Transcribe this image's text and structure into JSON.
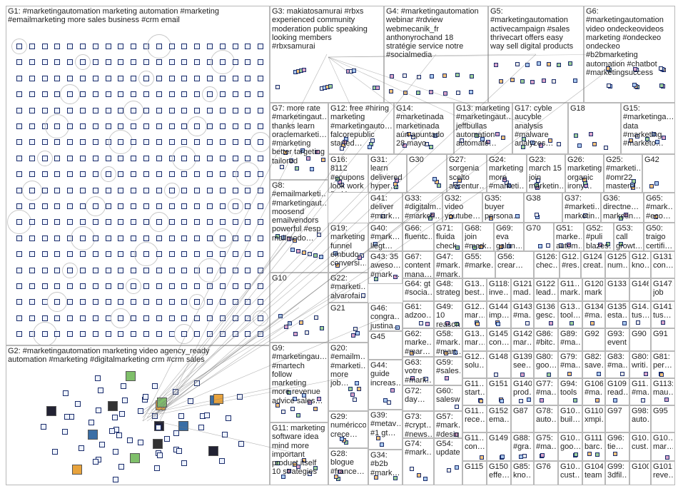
{
  "graph": {
    "colors": {
      "cell_border": "#b9b9b9",
      "node_border": "#1a2c6a",
      "edge": "#777777",
      "text": "#1e1e1e"
    },
    "groups": [
      {
        "id": "G1",
        "label": "G1: #marketingautomation marketing automation #marketing\n#emailmarketing more sales business #crm email"
      },
      {
        "id": "G2",
        "label": "G2: #marketingautomation marketing video agency_ready\nautomation #marketing #digitalmarketing crm #crm sales"
      },
      {
        "id": "G3",
        "label": "G3: makiatosamurai #rbxs\nexperienced community\nmoderation public speaking\nlooking members\n#rbxsamurai"
      },
      {
        "id": "G4",
        "label": "G4: #marketingautomation\nwebinar #rdview\nwebmecanik_fr\nanthonyrochand 18\nstratégie service notre\n#socialmedia"
      },
      {
        "id": "G5",
        "label": "G5:\n#marketingautomation\nactivecampaign #sales\nthrivecart offers easy\nway sell digital products"
      },
      {
        "id": "G6",
        "label": "G6:\n#marketingautomation\nvideo ondeckeovideos\nmarketing #ondeckeo\nondeckeo\n#b2bmarketing\nautomation #chatbot\n#marketingsuccess"
      },
      {
        "id": "G7",
        "label": "G7: more rate\n#marketingaut…\nthanks learn\noraclemarketi…\n#marketing\nbetter targeting\ntailored"
      },
      {
        "id": "G12",
        "label": "G12: free #hiring\nmarketing\n#marketingauto…\nfalcorepublic\nstarted…"
      },
      {
        "id": "G14",
        "label": "G14:\n#marketinada\nmarketinada\naún apuntado\n28 mayo"
      },
      {
        "id": "G13",
        "label": "G13: marketing\n#marketingaut…\njeffbullas\nautomation\nautomate…"
      },
      {
        "id": "G17",
        "label": "G17: cyble\naucyble\nanalysis\n#malware\nanalyzes…"
      },
      {
        "id": "G18",
        "label": "G18"
      },
      {
        "id": "G15",
        "label": "G15:\n#marketinga…\ndata\n#marketing\n#marketo…"
      },
      {
        "id": "G16",
        "label": "G16:\n8112\n#coupons\nlook work\nfind less\nminute\nfobi_inc…"
      },
      {
        "id": "G31",
        "label": "G31:\nlearn\ndelivered\nhyper…"
      },
      {
        "id": "G30",
        "label": "G30"
      },
      {
        "id": "G27",
        "label": "G27:\nsorgenia\nscelto\naccentur…"
      },
      {
        "id": "G24",
        "label": "G24:\nmarketing\nmore\n#marketi…"
      },
      {
        "id": "G23",
        "label": "G23:\nmarch 15\njoin\nmarketin…"
      },
      {
        "id": "G26",
        "label": "G26:\nmarketing\norganic\nirony…"
      },
      {
        "id": "G25",
        "label": "G25:\n#marketi…\n#omr22\nmastercl…"
      },
      {
        "id": "G42",
        "label": "G42"
      },
      {
        "id": "G8",
        "label": "G8:\n#emailmarketi…\n#marketingaut…\nmoosend\nemailvendors\npowerful #esp\nmailmodo…"
      },
      {
        "id": "G41",
        "label": "G41:\ndeliver\n#mark…"
      },
      {
        "id": "G33",
        "label": "G33:\n#digitalm…\n#marketi…"
      },
      {
        "id": "G32",
        "label": "G32:\nvideo\nyoutube…"
      },
      {
        "id": "G35",
        "label": "G35:\nbuyer\npersona…"
      },
      {
        "id": "G38",
        "label": "G38"
      },
      {
        "id": "G37",
        "label": "G37:\n#marketi…\nmarketin…"
      },
      {
        "id": "G36",
        "label": "G36:\ndirectne…\nmarketin…"
      },
      {
        "id": "G65",
        "label": "G65:\n#mark…\n#eco…"
      },
      {
        "id": "G19",
        "label": "G19:\nmarketing\nfunnel\nembudo\nconversi…"
      },
      {
        "id": "G40",
        "label": "G40:\n#mark…\nliegt…"
      },
      {
        "id": "G66",
        "label": "G66:\nfluentc…"
      },
      {
        "id": "G71",
        "label": "G71:\nfluida\ncheck…"
      },
      {
        "id": "G68",
        "label": "G68:\njoin\n#mark…"
      },
      {
        "id": "G69",
        "label": "G69:\neva\ngalán…"
      },
      {
        "id": "G70",
        "label": "G70"
      },
      {
        "id": "G51",
        "label": "G51:\nmarke…\nautom…"
      },
      {
        "id": "G52",
        "label": "G52:\n#puli\nblazes…"
      },
      {
        "id": "G53",
        "label": "G53:\ncall\ngrowt…"
      },
      {
        "id": "G50",
        "label": "G50:\ntraigo\ncertifi…"
      },
      {
        "id": "G10",
        "label": "G10"
      },
      {
        "id": "G22",
        "label": "G22:\n#marketi…\nalvarofai…\ncuenta…"
      },
      {
        "id": "G43",
        "label": "G43: 35\naweso…\n#mark…"
      },
      {
        "id": "G67",
        "label": "G67:\ncontent\nmana…"
      },
      {
        "id": "G47",
        "label": "G47:\n#mark…\n#mark…"
      },
      {
        "id": "G64",
        "label": "G64: gt\n#socia…"
      },
      {
        "id": "G48",
        "label": "G48:\nstrateg…"
      },
      {
        "id": "G55",
        "label": "G55:\n#marke…"
      },
      {
        "id": "G56",
        "label": "G56:\ncrear…"
      },
      {
        "id": "G126",
        "label": "G126:\nchec…"
      },
      {
        "id": "G12x",
        "label": "G12…\n#res…"
      },
      {
        "id": "G124",
        "label": "G124:\ncreat…"
      },
      {
        "id": "G125",
        "label": "G125:\nnum…"
      },
      {
        "id": "G12y",
        "label": "G12…\nkno…"
      },
      {
        "id": "G131",
        "label": "G131:\ncon…"
      },
      {
        "id": "G13a",
        "label": "G13…\nbest…"
      },
      {
        "id": "G118",
        "label": "G118:\ninve…"
      },
      {
        "id": "G121",
        "label": "G121:\nmad…"
      },
      {
        "id": "G122",
        "label": "G122:\nlead…"
      },
      {
        "id": "G11a",
        "label": "G11…\nmark…"
      },
      {
        "id": "G120",
        "label": "G120:\nmark…"
      },
      {
        "id": "G133",
        "label": "G133"
      },
      {
        "id": "G146",
        "label": "G146"
      },
      {
        "id": "G147",
        "label": "G147:\njob"
      },
      {
        "id": "G46",
        "label": "G46:\ncongra…\njustina…"
      },
      {
        "id": "G21",
        "label": "G21"
      },
      {
        "id": "G61",
        "label": "G61:\nadzoo…"
      },
      {
        "id": "G49",
        "label": "G49: 10\nreason…"
      },
      {
        "id": "G12b",
        "label": "G12…\nmar…"
      },
      {
        "id": "G144",
        "label": "G144:\nimp…"
      },
      {
        "id": "G143",
        "label": "G143:\n#ma…"
      },
      {
        "id": "G136",
        "label": "G136:\ngesc…"
      },
      {
        "id": "G13b",
        "label": "G13…\ntool…"
      },
      {
        "id": "G134",
        "label": "G134:\n#ma…"
      },
      {
        "id": "G135",
        "label": "G135:\nesta…"
      },
      {
        "id": "G14x",
        "label": "G14…\ntus…"
      },
      {
        "id": "G141",
        "label": "G141:\ntus…"
      },
      {
        "id": "G13c",
        "label": "G13…\nmar…"
      },
      {
        "id": "G145",
        "label": "G145:\ncon…"
      },
      {
        "id": "G142",
        "label": "G142:\nmar…"
      },
      {
        "id": "G86",
        "label": "G86:\n#bitc…"
      },
      {
        "id": "G89",
        "label": "G89:\n#ma…"
      },
      {
        "id": "G92",
        "label": "G92"
      },
      {
        "id": "G93",
        "label": "G93:\nevent"
      },
      {
        "id": "G90",
        "label": "G90"
      },
      {
        "id": "G91",
        "label": "G91"
      },
      {
        "id": "G9",
        "label": "G9:\n#marketingau…\n#martech\nfollow\nmarketing\nmore revenue\nadvice sales…"
      },
      {
        "id": "G45",
        "label": "G45"
      },
      {
        "id": "G62",
        "label": "G62:\nmarke…\n#mar…"
      },
      {
        "id": "G58",
        "label": "G58:\n#mark…\n#mart…"
      },
      {
        "id": "G12c",
        "label": "G12…\nsolu…"
      },
      {
        "id": "G148",
        "label": "G148"
      },
      {
        "id": "G139",
        "label": "G139:\nsee…"
      },
      {
        "id": "G80",
        "label": "G80:\ngoo…"
      },
      {
        "id": "G79",
        "label": "G79:\n#ma…"
      },
      {
        "id": "G82",
        "label": "G82:\nsave…"
      },
      {
        "id": "G83",
        "label": "G83:\n#ma…"
      },
      {
        "id": "G80b",
        "label": "G80:\nwriti…"
      },
      {
        "id": "G81",
        "label": "G81:\nper…"
      },
      {
        "id": "G20",
        "label": "G20:\n#emailm…\n#marketi…\nmore job…"
      },
      {
        "id": "G44",
        "label": "G44:\nguide\nincreas…"
      },
      {
        "id": "G63",
        "label": "G63:\nvotre\n#mark…"
      },
      {
        "id": "G59",
        "label": "G59:\n#sales…"
      },
      {
        "id": "G11b",
        "label": "G11…\nstart…"
      },
      {
        "id": "G151",
        "label": "G151"
      },
      {
        "id": "G140",
        "label": "G140:\nprod…"
      },
      {
        "id": "G77",
        "label": "G77:\n#ma…"
      },
      {
        "id": "G94",
        "label": "G94:\ntools"
      },
      {
        "id": "G106",
        "label": "G106:\n#ma…"
      },
      {
        "id": "G109",
        "label": "G109:\nread…"
      },
      {
        "id": "G11c",
        "label": "G11…\n#ma…"
      },
      {
        "id": "G113",
        "label": "G113:\nmau…"
      },
      {
        "id": "G11",
        "label": "G11: marketing\nsoftware idea\nmind more\nimportant\nproduct itself\n10 strategies"
      },
      {
        "id": "G29",
        "label": "G29:\nnuméricco\ncrece…"
      },
      {
        "id": "G39",
        "label": "G39:\n#metav…\n#1 gt…"
      },
      {
        "id": "G72",
        "label": "G72:\nday…"
      },
      {
        "id": "G60",
        "label": "G60:\nsalesw…"
      },
      {
        "id": "G11d",
        "label": "G11…\nrece…"
      },
      {
        "id": "G152",
        "label": "G152:\nema…"
      },
      {
        "id": "G87",
        "label": "G87"
      },
      {
        "id": "G78",
        "label": "G78:\nauto…"
      },
      {
        "id": "G10a",
        "label": "G10…\nbuil…"
      },
      {
        "id": "G110",
        "label": "G110:\nxmpi…"
      },
      {
        "id": "G97",
        "label": "G97"
      },
      {
        "id": "G98",
        "label": "G98:\nauto…"
      },
      {
        "id": "G95",
        "label": "G95"
      },
      {
        "id": "G73",
        "label": "G73:\n#crypt…\n#news…"
      },
      {
        "id": "G57",
        "label": "G57:\n#mark…\n#desig…"
      },
      {
        "id": "G11e",
        "label": "G11…\ncon…"
      },
      {
        "id": "G149",
        "label": "G149"
      },
      {
        "id": "G88",
        "label": "G88:\n#gra…"
      },
      {
        "id": "G75",
        "label": "G75:\n#ma…"
      },
      {
        "id": "G10b",
        "label": "G10…\ngoo…"
      },
      {
        "id": "G111",
        "label": "G111:\nbarc…"
      },
      {
        "id": "G96",
        "label": "G96:\ntie…"
      },
      {
        "id": "G10c",
        "label": "G10…\ncust…"
      },
      {
        "id": "G10d",
        "label": "G10…\nmar…"
      },
      {
        "id": "G28",
        "label": "G28:\nblogue\n#france…"
      },
      {
        "id": "G34",
        "label": "G34:\n#b2b\n#mark…"
      },
      {
        "id": "G74",
        "label": "G74:\n#mark…"
      },
      {
        "id": "G54",
        "label": "G54:\nupdate…"
      },
      {
        "id": "G115",
        "label": "G115"
      },
      {
        "id": "G150",
        "label": "G150:\neffe…"
      },
      {
        "id": "G85",
        "label": "G85:\nkno…"
      },
      {
        "id": "G76",
        "label": "G76"
      },
      {
        "id": "G10e",
        "label": "G10…\ncust…"
      },
      {
        "id": "G104",
        "label": "G104:\nteam…"
      },
      {
        "id": "G99",
        "label": "G99:\n3dfil…"
      },
      {
        "id": "G100",
        "label": "G100"
      },
      {
        "id": "G101",
        "label": "G101:\nreve…"
      }
    ]
  }
}
